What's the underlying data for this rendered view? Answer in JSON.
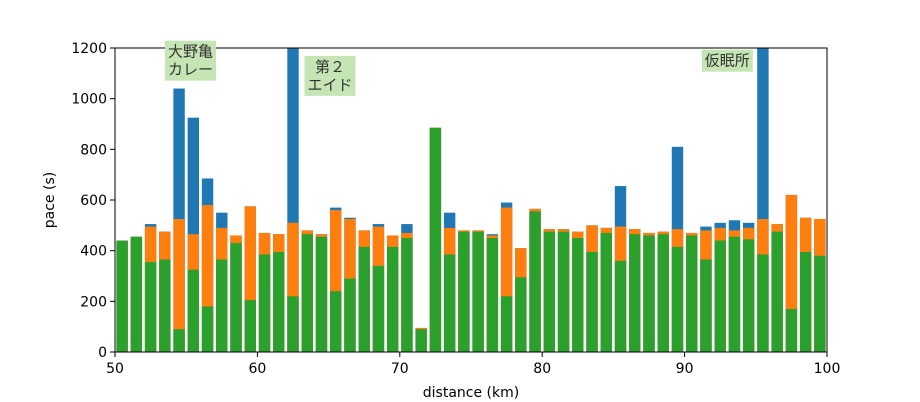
{
  "chart_data": {
    "type": "bar",
    "stacked": "overlay",
    "xlabel": "distance (km)",
    "ylabel": "pace (s)",
    "xlim": [
      50,
      100
    ],
    "ylim": [
      0,
      1200
    ],
    "xticks": [
      "50",
      "60",
      "70",
      "80",
      "90",
      "100"
    ],
    "yticks": [
      "0",
      "200",
      "400",
      "600",
      "800",
      "1000",
      "1200"
    ],
    "grid": false,
    "x": [
      50.5,
      51.5,
      52.5,
      53.5,
      54.5,
      55.5,
      56.5,
      57.5,
      58.5,
      59.5,
      60.5,
      61.5,
      62.5,
      63.5,
      64.5,
      65.5,
      66.5,
      67.5,
      68.5,
      69.5,
      70.5,
      71.5,
      72.5,
      73.5,
      74.5,
      75.5,
      76.5,
      77.5,
      78.5,
      79.5,
      80.5,
      81.5,
      82.5,
      83.5,
      84.5,
      85.5,
      86.5,
      87.5,
      88.5,
      89.5,
      90.5,
      91.5,
      92.5,
      93.5,
      94.5,
      95.5,
      96.5,
      97.5,
      98.5,
      99.5
    ],
    "series": [
      {
        "color": "#1f77b4",
        "values": [
          440,
          455,
          505,
          475,
          1040,
          925,
          685,
          550,
          460,
          575,
          470,
          465,
          1200,
          480,
          465,
          570,
          530,
          480,
          505,
          460,
          505,
          95,
          885,
          550,
          480,
          480,
          465,
          590,
          410,
          565,
          485,
          485,
          475,
          500,
          490,
          655,
          485,
          470,
          475,
          810,
          470,
          495,
          510,
          520,
          510,
          1200,
          505,
          620,
          530,
          525
        ]
      },
      {
        "color": "#ff7f0e",
        "values": [
          440,
          455,
          495,
          475,
          525,
          465,
          580,
          490,
          460,
          575,
          470,
          465,
          510,
          480,
          465,
          560,
          525,
          480,
          495,
          460,
          470,
          95,
          885,
          490,
          480,
          480,
          460,
          570,
          410,
          565,
          485,
          485,
          475,
          500,
          490,
          495,
          485,
          470,
          475,
          485,
          470,
          480,
          490,
          480,
          490,
          525,
          505,
          620,
          530,
          525
        ]
      },
      {
        "color": "#2ca02c",
        "values": [
          440,
          455,
          355,
          365,
          90,
          325,
          180,
          365,
          430,
          205,
          385,
          395,
          220,
          465,
          455,
          240,
          290,
          415,
          340,
          415,
          450,
          90,
          885,
          385,
          475,
          475,
          450,
          220,
          295,
          555,
          475,
          475,
          450,
          395,
          470,
          360,
          465,
          460,
          465,
          415,
          460,
          365,
          440,
          455,
          445,
          385,
          475,
          170,
          395,
          380
        ]
      }
    ],
    "annotations": [
      {
        "text": "大野亀\nカレー",
        "x": 55.3,
        "y": 1150
      },
      {
        "text": "第２\nエイド",
        "x": 65.1,
        "y": 1090
      },
      {
        "text": "仮眠所",
        "x": 93.0,
        "y": 1150
      }
    ]
  }
}
